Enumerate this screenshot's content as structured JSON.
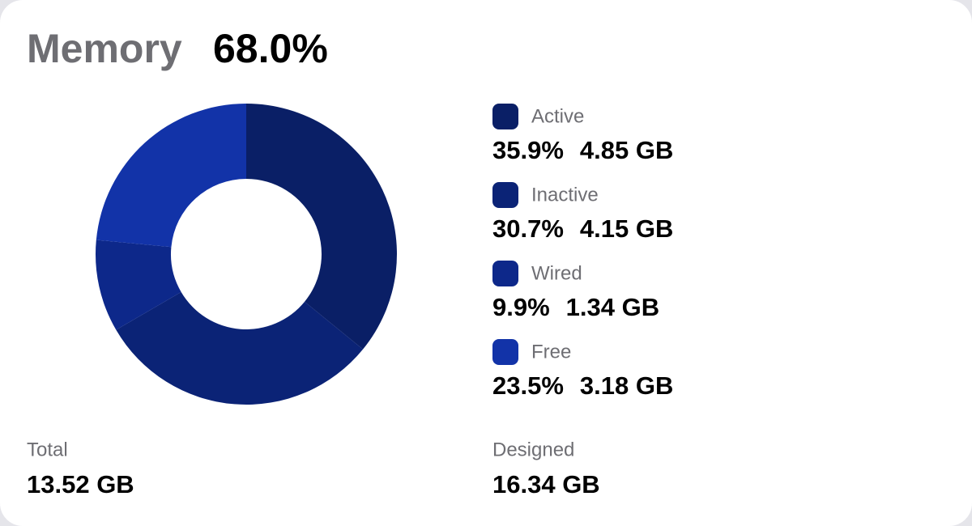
{
  "chart_data": {
    "type": "pie",
    "title": "Memory",
    "usage": "68.0%",
    "categories": [
      "Active",
      "Inactive",
      "Wired",
      "Free"
    ],
    "values": [
      35.9,
      30.7,
      9.9,
      23.5
    ],
    "value_labels": [
      "35.9%",
      "30.7%",
      "9.9%",
      "23.5%"
    ],
    "sizes": [
      "4.85 GB",
      "4.15 GB",
      "1.34 GB",
      "3.18 GB"
    ],
    "colors": [
      "#0a1f66",
      "#0b2376",
      "#0d288a",
      "#1233a8"
    ],
    "footer": [
      {
        "label": "Total",
        "value": "13.52 GB"
      },
      {
        "label": "Designed",
        "value": "16.34 GB"
      }
    ]
  }
}
